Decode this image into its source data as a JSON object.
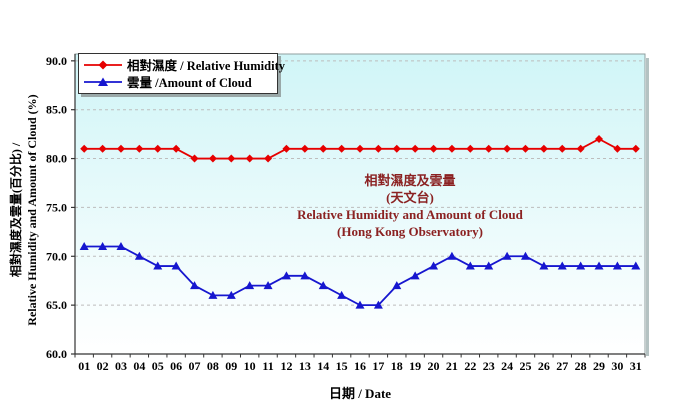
{
  "chart_data": {
    "type": "line",
    "x_categories": [
      "01",
      "02",
      "03",
      "04",
      "05",
      "06",
      "07",
      "08",
      "09",
      "10",
      "11",
      "12",
      "13",
      "14",
      "15",
      "16",
      "17",
      "18",
      "19",
      "20",
      "21",
      "22",
      "23",
      "24",
      "25",
      "26",
      "27",
      "28",
      "29",
      "30",
      "31"
    ],
    "xlabel": "日期 / Date",
    "ylabel_line1": "相對濕度及雲量(百分比) /",
    "ylabel_line2": "Relative Humidity and Amount of Cloud (%)",
    "ylim": [
      60,
      90.7
    ],
    "ytick_values": [
      60,
      65,
      70,
      75,
      80,
      85,
      90
    ],
    "ytick_labels": [
      "60.0",
      "65.0",
      "70.0",
      "75.0",
      "80.0",
      "85.0",
      "90.0"
    ],
    "grid": "horizontal dashed",
    "legend_position": "top-left inside plot",
    "annotation": [
      "相對濕度及雲量",
      "(天文台)",
      "Relative Humidity and Amount of Cloud",
      "(Hong Kong Observatory)"
    ],
    "annotation_color": "#8b2222",
    "plot_bg_top": "#d0f5f7",
    "plot_bg_bottom": "#ffffff",
    "gridline_color": "#bdbdbd",
    "series": [
      {
        "name": "相對濕度 / Relative Humidity",
        "color": "#e60000",
        "marker": "diamond",
        "values": [
          81,
          81,
          81,
          81,
          81,
          81,
          80,
          80,
          80,
          80,
          80,
          81,
          81,
          81,
          81,
          81,
          81,
          81,
          81,
          81,
          81,
          81,
          81,
          81,
          81,
          81,
          81,
          81,
          82,
          81,
          81
        ]
      },
      {
        "name": "雲量 /Amount of Cloud",
        "color": "#1616cf",
        "marker": "triangle",
        "values": [
          71,
          71,
          71,
          70,
          69,
          69,
          67,
          66,
          66,
          67,
          67,
          68,
          68,
          67,
          66,
          65,
          65,
          67,
          68,
          69,
          70,
          69,
          69,
          70,
          70,
          69,
          69,
          69,
          69,
          69,
          69
        ]
      }
    ]
  }
}
